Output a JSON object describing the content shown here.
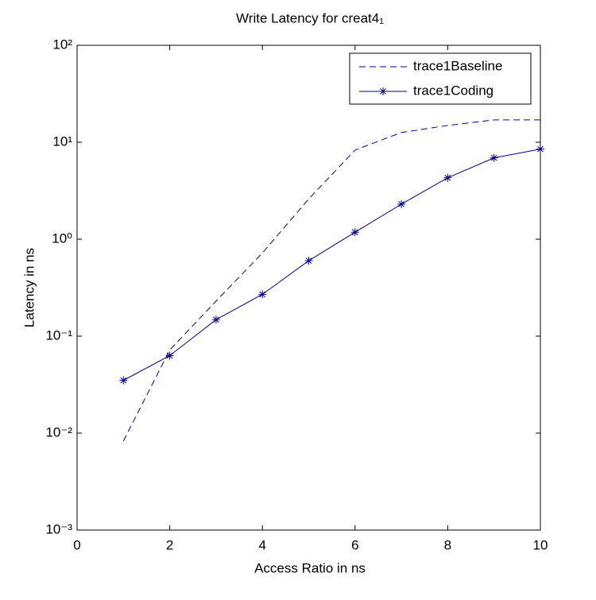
{
  "chart_data": {
    "type": "line",
    "title": "Write Latency for creat4₁",
    "xlabel": "Access Ratio in ns",
    "ylabel": "Latency in ns",
    "x": [
      1,
      2,
      3,
      4,
      5,
      6,
      7,
      8,
      9,
      10
    ],
    "series": [
      {
        "name": "trace1Baseline",
        "color": "#00008b",
        "dash": "dashed",
        "marker": "none",
        "values": [
          0.0083,
          0.072,
          0.23,
          0.72,
          2.6,
          8.3,
          12.6,
          14.9,
          17,
          17
        ]
      },
      {
        "name": "trace1Coding",
        "color": "#00008b",
        "dash": "solid",
        "marker": "asterisk",
        "values": [
          0.035,
          0.063,
          0.148,
          0.27,
          0.6,
          1.18,
          2.3,
          4.3,
          6.9,
          8.5
        ]
      }
    ],
    "xlim": [
      0,
      10
    ],
    "xticks": [
      0,
      2,
      4,
      6,
      8,
      10
    ],
    "ylim": [
      0.001,
      100
    ],
    "yscale": "log",
    "yticks": [
      {
        "value": 0.001,
        "label": "10⁻³"
      },
      {
        "value": 0.01,
        "label": "10⁻²"
      },
      {
        "value": 0.1,
        "label": "10⁻¹"
      },
      {
        "value": 1,
        "label": "10⁰"
      },
      {
        "value": 10,
        "label": "10¹"
      },
      {
        "value": 100,
        "label": "10²"
      }
    ],
    "grid": false,
    "legend": "northeast"
  }
}
